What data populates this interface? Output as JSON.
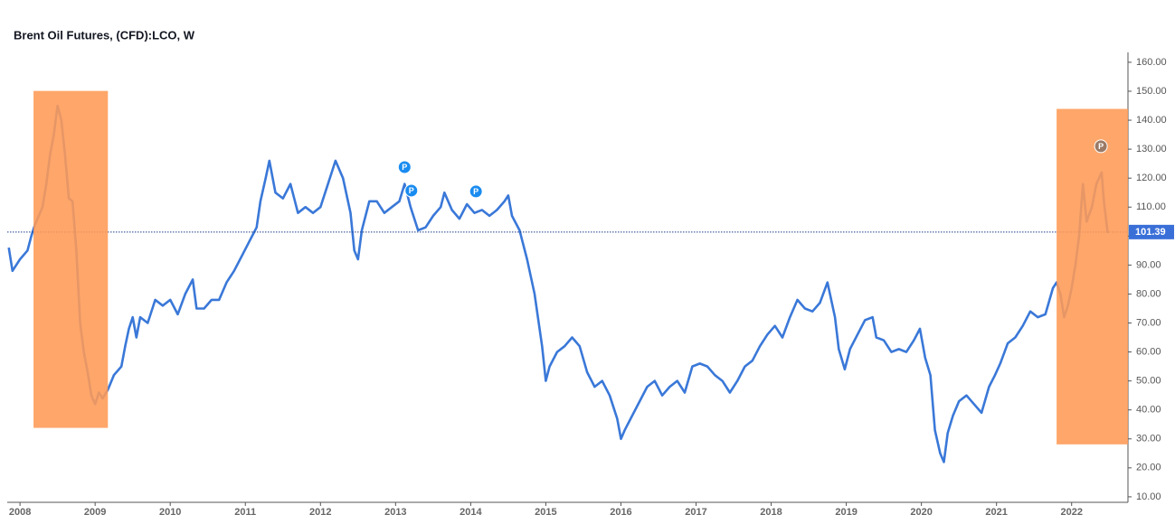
{
  "chart_data": {
    "type": "line",
    "title": "Brent Oil Futures, (CFD):LCO, W",
    "x": [
      2007.85,
      2007.9,
      2008.0,
      2008.1,
      2008.15,
      2008.2,
      2008.25,
      2008.3,
      2008.35,
      2008.4,
      2008.45,
      2008.5,
      2008.55,
      2008.6,
      2008.65,
      2008.7,
      2008.75,
      2008.8,
      2008.85,
      2008.9,
      2008.95,
      2009.0,
      2009.05,
      2009.1,
      2009.17,
      2009.25,
      2009.35,
      2009.4,
      2009.45,
      2009.5,
      2009.55,
      2009.6,
      2009.7,
      2009.8,
      2009.9,
      2010.0,
      2010.1,
      2010.2,
      2010.3,
      2010.35,
      2010.45,
      2010.55,
      2010.65,
      2010.75,
      2010.85,
      2010.95,
      2011.05,
      2011.15,
      2011.2,
      2011.27,
      2011.32,
      2011.4,
      2011.5,
      2011.6,
      2011.7,
      2011.8,
      2011.9,
      2012.0,
      2012.1,
      2012.2,
      2012.3,
      2012.4,
      2012.45,
      2012.5,
      2012.55,
      2012.65,
      2012.75,
      2012.85,
      2012.95,
      2013.05,
      2013.12,
      2013.2,
      2013.3,
      2013.4,
      2013.5,
      2013.6,
      2013.65,
      2013.75,
      2013.85,
      2013.95,
      2014.05,
      2014.15,
      2014.25,
      2014.35,
      2014.45,
      2014.5,
      2014.55,
      2014.65,
      2014.75,
      2014.85,
      2014.95,
      2015.0,
      2015.05,
      2015.15,
      2015.25,
      2015.35,
      2015.45,
      2015.55,
      2015.65,
      2015.75,
      2015.85,
      2015.95,
      2016.0,
      2016.05,
      2016.15,
      2016.25,
      2016.35,
      2016.45,
      2016.55,
      2016.65,
      2016.75,
      2016.85,
      2016.95,
      2017.05,
      2017.15,
      2017.25,
      2017.35,
      2017.45,
      2017.55,
      2017.65,
      2017.75,
      2017.85,
      2017.95,
      2018.05,
      2018.15,
      2018.25,
      2018.35,
      2018.45,
      2018.55,
      2018.65,
      2018.75,
      2018.85,
      2018.9,
      2018.98,
      2019.05,
      2019.15,
      2019.25,
      2019.35,
      2019.4,
      2019.5,
      2019.6,
      2019.7,
      2019.8,
      2019.9,
      2019.98,
      2020.05,
      2020.12,
      2020.18,
      2020.25,
      2020.3,
      2020.35,
      2020.42,
      2020.5,
      2020.6,
      2020.7,
      2020.8,
      2020.9,
      2020.98,
      2021.05,
      2021.15,
      2021.25,
      2021.35,
      2021.45,
      2021.55,
      2021.65,
      2021.75,
      2021.8,
      2021.85,
      2021.9,
      2021.95,
      2022.0,
      2022.05,
      2022.1,
      2022.15,
      2022.2,
      2022.27,
      2022.33,
      2022.4,
      2022.43,
      2022.48
    ],
    "series": [
      {
        "name": "LCO",
        "color": "#3a78d8",
        "values": [
          96,
          88,
          92,
          95,
          100,
          104,
          107,
          110,
          118,
          128,
          135,
          145,
          140,
          128,
          113,
          112,
          95,
          70,
          60,
          53,
          45,
          42,
          46,
          44,
          47,
          52,
          55,
          62,
          68,
          72,
          65,
          72,
          70,
          78,
          76,
          78,
          73,
          80,
          85,
          75,
          75,
          78,
          78,
          84,
          88,
          93,
          98,
          103,
          112,
          120,
          126,
          115,
          113,
          118,
          108,
          110,
          108,
          110,
          118,
          126,
          120,
          108,
          95,
          92,
          102,
          112,
          112,
          108,
          110,
          112,
          118,
          110,
          102,
          103,
          107,
          110,
          115,
          109,
          106,
          111,
          108,
          109,
          107,
          109,
          112,
          114,
          107,
          102,
          92,
          80,
          62,
          50,
          55,
          60,
          62,
          65,
          62,
          53,
          48,
          50,
          45,
          37,
          30,
          33,
          38,
          43,
          48,
          50,
          45,
          48,
          50,
          46,
          55,
          56,
          55,
          52,
          50,
          46,
          50,
          55,
          57,
          62,
          66,
          69,
          65,
          72,
          78,
          75,
          74,
          77,
          84,
          72,
          61,
          54,
          61,
          66,
          71,
          72,
          65,
          64,
          60,
          61,
          60,
          64,
          68,
          58,
          52,
          33,
          25,
          22,
          32,
          38,
          43,
          45,
          42,
          39,
          48,
          52,
          56,
          63,
          65,
          69,
          74,
          72,
          73,
          82,
          84,
          80,
          72,
          76,
          82,
          90,
          100,
          118,
          105,
          110,
          118,
          122,
          112,
          101
        ]
      }
    ],
    "last_price": 101.39,
    "xlim": [
      2007.83,
      2022.75
    ],
    "xticks": [
      2008,
      2009,
      2010,
      2011,
      2012,
      2013,
      2014,
      2015,
      2016,
      2017,
      2018,
      2019,
      2020,
      2021,
      2022
    ],
    "ylim": [
      8.1,
      163.4
    ],
    "yticks": [
      {
        "value": 10,
        "label": "10.00"
      },
      {
        "value": 20,
        "label": "20.00"
      },
      {
        "value": 30,
        "label": "30.00"
      },
      {
        "value": 40,
        "label": "40.00"
      },
      {
        "value": 50,
        "label": "50.00"
      },
      {
        "value": 60,
        "label": "60.00"
      },
      {
        "value": 70,
        "label": "70.00"
      },
      {
        "value": 80,
        "label": "80.00"
      },
      {
        "value": 90,
        "label": "90.00"
      },
      {
        "value": 100,
        "label": "100.00"
      },
      {
        "value": 110,
        "label": "110.00"
      },
      {
        "value": 120,
        "label": "120.00"
      },
      {
        "value": 130,
        "label": "130.00"
      },
      {
        "value": 140,
        "label": "140.00"
      },
      {
        "value": 150,
        "label": "150.00"
      },
      {
        "value": 160,
        "label": "160.00"
      }
    ],
    "highlights": [
      {
        "x": [
          2008.18,
          2009.17
        ],
        "y": [
          33.8,
          150.1
        ],
        "color": "#ff9a55"
      },
      {
        "x": [
          2021.8,
          2022.75
        ],
        "y": [
          28.1,
          143.9
        ],
        "color": "#ff9a55"
      }
    ],
    "markers": [
      {
        "x": 2013.12,
        "y": 123.8,
        "label": "P",
        "color": "#1a8cf0"
      },
      {
        "x": 2013.21,
        "y": 115.7,
        "label": "P",
        "color": "#1a8cf0"
      },
      {
        "x": 2014.07,
        "y": 115.4,
        "label": "P",
        "color": "#1a8cf0"
      },
      {
        "x": 2022.39,
        "y": 131,
        "label": "P",
        "color": "#9a7a66"
      }
    ]
  }
}
